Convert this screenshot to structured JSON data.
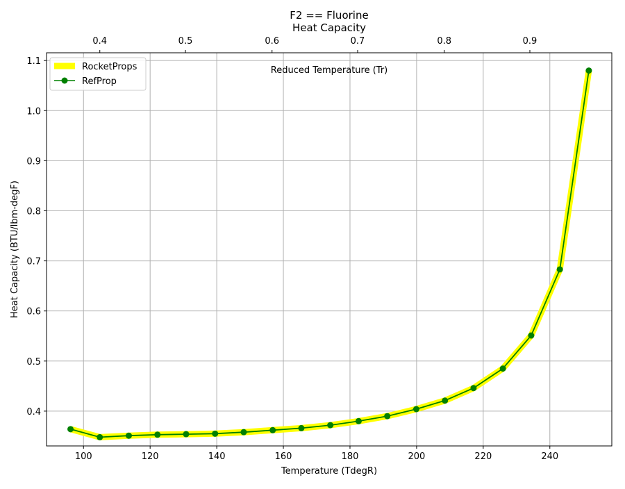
{
  "chart_data": {
    "type": "line",
    "title_line1": "F2 == Fluorine",
    "title_line2": "Heat Capacity",
    "xlabel": "Temperature (TdegR)",
    "ylabel": "Heat Capacity (BTU/lbm-degF)",
    "top_xlabel": "Reduced Temperature (Tr)",
    "xlim": [
      88.9,
      258.6
    ],
    "ylim": [
      0.3305,
      1.1155
    ],
    "xticks": [
      100,
      120,
      140,
      160,
      180,
      200,
      220,
      240
    ],
    "yticks": [
      0.4,
      0.5,
      0.6,
      0.7,
      0.8,
      0.9,
      1.0,
      1.1
    ],
    "ytick_labels": [
      "0.4",
      "0.5",
      "0.6",
      "0.7",
      "0.8",
      "0.9",
      "1.0",
      "1.1"
    ],
    "top_xticks": [
      0.4,
      0.5,
      0.6,
      0.7,
      0.8,
      0.9
    ],
    "top_xticks_temp": [
      104.9,
      130.6,
      156.6,
      182.3,
      208.3,
      234.0
    ],
    "grid": true,
    "legend_position": "top-left",
    "x": [
      96.1,
      104.9,
      113.6,
      122.2,
      130.8,
      139.5,
      148.1,
      156.8,
      165.4,
      174.1,
      182.6,
      191.2,
      199.9,
      208.5,
      217.1,
      225.9,
      234.4,
      243.0,
      251.7
    ],
    "series": [
      {
        "name": "RocketProps",
        "color": "#ffff00",
        "values": [
          0.364,
          0.348,
          0.351,
          0.353,
          0.354,
          0.355,
          0.358,
          0.362,
          0.366,
          0.372,
          0.38,
          0.39,
          0.404,
          0.421,
          0.446,
          0.485,
          0.551,
          0.683,
          1.08
        ]
      },
      {
        "name": "RefProp",
        "color": "#008000",
        "values": [
          0.364,
          0.348,
          0.351,
          0.353,
          0.354,
          0.355,
          0.358,
          0.362,
          0.366,
          0.372,
          0.38,
          0.39,
          0.404,
          0.421,
          0.446,
          0.485,
          0.551,
          0.683,
          1.08
        ]
      }
    ]
  }
}
